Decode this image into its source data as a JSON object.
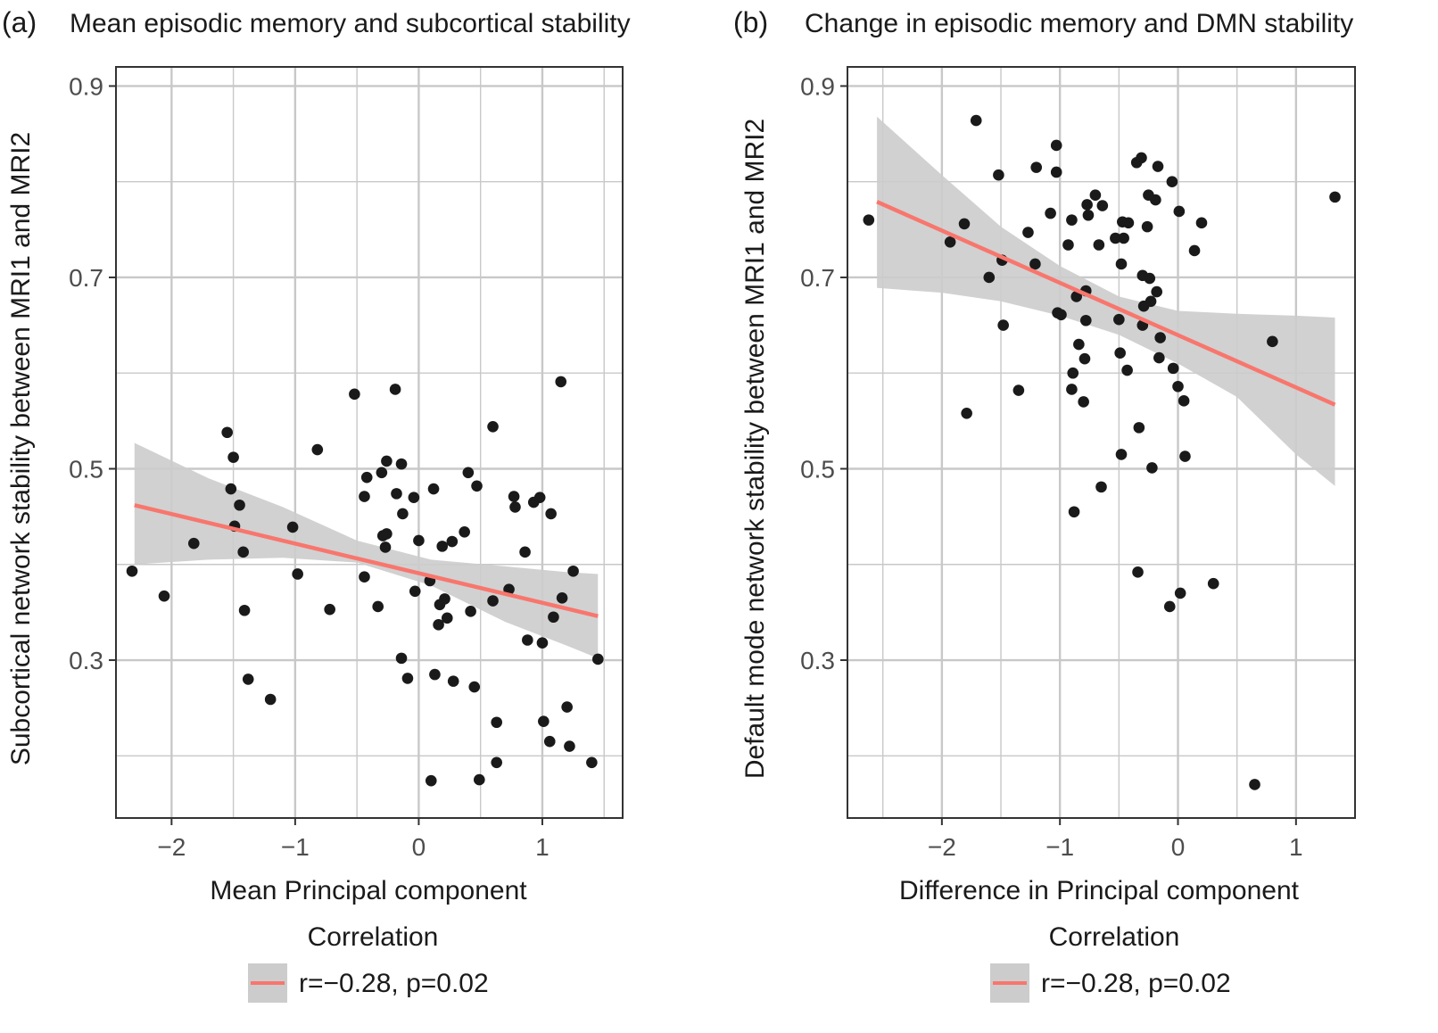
{
  "chart_data": [
    {
      "type": "scatter",
      "panel": "(a)",
      "title": "Mean episodic memory and subcortical stability",
      "xlabel": "Mean Principal component",
      "ylabel": "Subcortical network stability between MRI1 and MRI2",
      "xlim": [
        -2.45,
        1.65
      ],
      "ylim": [
        0.135,
        0.92
      ],
      "xticks": [
        -2,
        -1,
        0,
        1
      ],
      "xtick_labels": [
        "−2",
        "−1",
        "0",
        "1"
      ],
      "yticks": [
        0.3,
        0.5,
        0.7,
        0.9
      ],
      "ytick_labels": [
        "0.3",
        "0.5",
        "0.7",
        "0.9"
      ],
      "minor_yticks": [
        0.2,
        0.4,
        0.6,
        0.8
      ],
      "grid": true,
      "points": [
        [
          -2.32,
          0.393
        ],
        [
          -2.06,
          0.367
        ],
        [
          -1.82,
          0.422
        ],
        [
          -1.55,
          0.538
        ],
        [
          -1.52,
          0.479
        ],
        [
          -1.5,
          0.512
        ],
        [
          -1.49,
          0.44
        ],
        [
          -1.45,
          0.462
        ],
        [
          -1.42,
          0.413
        ],
        [
          -1.41,
          0.352
        ],
        [
          -1.38,
          0.28
        ],
        [
          -1.2,
          0.259
        ],
        [
          -1.02,
          0.439
        ],
        [
          -0.98,
          0.39
        ],
        [
          -0.72,
          0.353
        ],
        [
          -0.82,
          0.52
        ],
        [
          -0.52,
          0.578
        ],
        [
          -0.44,
          0.387
        ],
        [
          -0.44,
          0.471
        ],
        [
          -0.42,
          0.491
        ],
        [
          -0.33,
          0.356
        ],
        [
          -0.3,
          0.496
        ],
        [
          -0.29,
          0.43
        ],
        [
          -0.27,
          0.418
        ],
        [
          -0.26,
          0.508
        ],
        [
          -0.26,
          0.432
        ],
        [
          -0.19,
          0.583
        ],
        [
          -0.18,
          0.474
        ],
        [
          -0.14,
          0.505
        ],
        [
          -0.14,
          0.302
        ],
        [
          -0.13,
          0.453
        ],
        [
          -0.09,
          0.281
        ],
        [
          -0.04,
          0.47
        ],
        [
          -0.03,
          0.372
        ],
        [
          0.0,
          0.425
        ],
        [
          0.09,
          0.383
        ],
        [
          0.1,
          0.174
        ],
        [
          0.12,
          0.479
        ],
        [
          0.13,
          0.285
        ],
        [
          0.16,
          0.337
        ],
        [
          0.17,
          0.358
        ],
        [
          0.19,
          0.419
        ],
        [
          0.21,
          0.364
        ],
        [
          0.23,
          0.344
        ],
        [
          0.27,
          0.424
        ],
        [
          0.28,
          0.278
        ],
        [
          0.37,
          0.434
        ],
        [
          0.4,
          0.496
        ],
        [
          0.42,
          0.351
        ],
        [
          0.45,
          0.272
        ],
        [
          0.47,
          0.482
        ],
        [
          0.49,
          0.175
        ],
        [
          0.6,
          0.362
        ],
        [
          0.6,
          0.544
        ],
        [
          0.63,
          0.235
        ],
        [
          0.63,
          0.193
        ],
        [
          0.73,
          0.374
        ],
        [
          0.77,
          0.471
        ],
        [
          0.78,
          0.46
        ],
        [
          0.86,
          0.413
        ],
        [
          0.88,
          0.321
        ],
        [
          0.93,
          0.465
        ],
        [
          0.98,
          0.47
        ],
        [
          1.0,
          0.318
        ],
        [
          1.01,
          0.236
        ],
        [
          1.06,
          0.215
        ],
        [
          1.07,
          0.453
        ],
        [
          1.09,
          0.345
        ],
        [
          1.15,
          0.591
        ],
        [
          1.16,
          0.365
        ],
        [
          1.2,
          0.251
        ],
        [
          1.22,
          0.21
        ],
        [
          1.25,
          0.393
        ],
        [
          1.4,
          0.193
        ],
        [
          1.45,
          0.301
        ]
      ],
      "fit": {
        "x": [
          -2.3,
          1.45
        ],
        "y": [
          0.462,
          0.346
        ]
      },
      "ci_band": {
        "x": [
          -2.3,
          -1.7,
          -1.1,
          -0.5,
          0.1,
          0.7,
          1.2,
          1.45
        ],
        "lower": [
          0.4,
          0.405,
          0.407,
          0.402,
          0.378,
          0.34,
          0.315,
          0.302
        ],
        "upper": [
          0.527,
          0.49,
          0.46,
          0.425,
          0.405,
          0.398,
          0.392,
          0.39
        ]
      },
      "legend": {
        "title": "Correlation",
        "label": "r=−0.28, p=0.02",
        "position": "bottom"
      }
    },
    {
      "type": "scatter",
      "panel": "(b)",
      "title": "Change in episodic memory and DMN stability",
      "xlabel": "Difference in Principal component",
      "ylabel": "Default mode network stability between MRI1 and MRI2",
      "xlim": [
        -2.8,
        1.5
      ],
      "ylim": [
        0.135,
        0.92
      ],
      "xticks": [
        -2,
        -1,
        0,
        1
      ],
      "xtick_labels": [
        "−2",
        "−1",
        "0",
        "1"
      ],
      "yticks": [
        0.3,
        0.5,
        0.7,
        0.9
      ],
      "ytick_labels": [
        "0.3",
        "0.5",
        "0.7",
        "0.9"
      ],
      "minor_yticks": [
        0.2,
        0.4,
        0.6,
        0.8
      ],
      "grid": true,
      "points": [
        [
          -2.62,
          0.76
        ],
        [
          -1.93,
          0.737
        ],
        [
          -1.81,
          0.756
        ],
        [
          -1.79,
          0.558
        ],
        [
          -1.71,
          0.864
        ],
        [
          -1.6,
          0.7
        ],
        [
          -1.52,
          0.807
        ],
        [
          -1.49,
          0.718
        ],
        [
          -1.48,
          0.65
        ],
        [
          -1.35,
          0.582
        ],
        [
          -1.27,
          0.747
        ],
        [
          -1.21,
          0.714
        ],
        [
          -1.2,
          0.815
        ],
        [
          -1.08,
          0.767
        ],
        [
          -1.03,
          0.81
        ],
        [
          -1.03,
          0.838
        ],
        [
          -1.02,
          0.663
        ],
        [
          -0.99,
          0.661
        ],
        [
          -0.93,
          0.734
        ],
        [
          -0.9,
          0.76
        ],
        [
          -0.9,
          0.583
        ],
        [
          -0.89,
          0.6
        ],
        [
          -0.88,
          0.455
        ],
        [
          -0.86,
          0.68
        ],
        [
          -0.84,
          0.63
        ],
        [
          -0.8,
          0.57
        ],
        [
          -0.79,
          0.615
        ],
        [
          -0.78,
          0.686
        ],
        [
          -0.78,
          0.655
        ],
        [
          -0.77,
          0.776
        ],
        [
          -0.76,
          0.765
        ],
        [
          -0.7,
          0.786
        ],
        [
          -0.67,
          0.734
        ],
        [
          -0.65,
          0.481
        ],
        [
          -0.64,
          0.775
        ],
        [
          -0.53,
          0.741
        ],
        [
          -0.5,
          0.656
        ],
        [
          -0.49,
          0.621
        ],
        [
          -0.48,
          0.714
        ],
        [
          -0.48,
          0.515
        ],
        [
          -0.47,
          0.758
        ],
        [
          -0.46,
          0.741
        ],
        [
          -0.43,
          0.603
        ],
        [
          -0.42,
          0.757
        ],
        [
          -0.35,
          0.82
        ],
        [
          -0.34,
          0.392
        ],
        [
          -0.33,
          0.543
        ],
        [
          -0.31,
          0.825
        ],
        [
          -0.3,
          0.702
        ],
        [
          -0.3,
          0.65
        ],
        [
          -0.29,
          0.67
        ],
        [
          -0.26,
          0.753
        ],
        [
          -0.25,
          0.786
        ],
        [
          -0.24,
          0.699
        ],
        [
          -0.22,
          0.501
        ],
        [
          -0.23,
          0.675
        ],
        [
          -0.19,
          0.781
        ],
        [
          -0.18,
          0.685
        ],
        [
          -0.17,
          0.816
        ],
        [
          -0.16,
          0.616
        ],
        [
          -0.15,
          0.637
        ],
        [
          -0.07,
          0.356
        ],
        [
          -0.05,
          0.8
        ],
        [
          -0.04,
          0.605
        ],
        [
          0.0,
          0.586
        ],
        [
          0.01,
          0.769
        ],
        [
          0.02,
          0.37
        ],
        [
          0.05,
          0.571
        ],
        [
          0.06,
          0.513
        ],
        [
          0.14,
          0.728
        ],
        [
          0.2,
          0.757
        ],
        [
          0.3,
          0.38
        ],
        [
          0.65,
          0.17
        ],
        [
          0.8,
          0.633
        ],
        [
          1.33,
          0.784
        ]
      ],
      "fit": {
        "x": [
          -2.55,
          1.33
        ],
        "y": [
          0.779,
          0.567
        ]
      },
      "ci_band": {
        "x": [
          -2.55,
          -2.0,
          -1.5,
          -1.0,
          -0.5,
          0.0,
          0.5,
          1.0,
          1.33
        ],
        "lower": [
          0.689,
          0.684,
          0.675,
          0.66,
          0.64,
          0.61,
          0.575,
          0.515,
          0.482
        ],
        "upper": [
          0.868,
          0.807,
          0.753,
          0.712,
          0.68,
          0.665,
          0.662,
          0.66,
          0.658
        ]
      },
      "legend": {
        "title": "Correlation",
        "label": "r=−0.28, p=0.02",
        "position": "bottom"
      }
    }
  ],
  "colors": {
    "fit_line": "#f8766d",
    "ci_band": "#cccccc",
    "points": "#1a1a1a",
    "grid": "#c8c8c8",
    "panel_border": "#333333",
    "tick_text": "#4d4d4d",
    "text": "#1a1a1a",
    "legend_key_bg": "#cccccc"
  }
}
